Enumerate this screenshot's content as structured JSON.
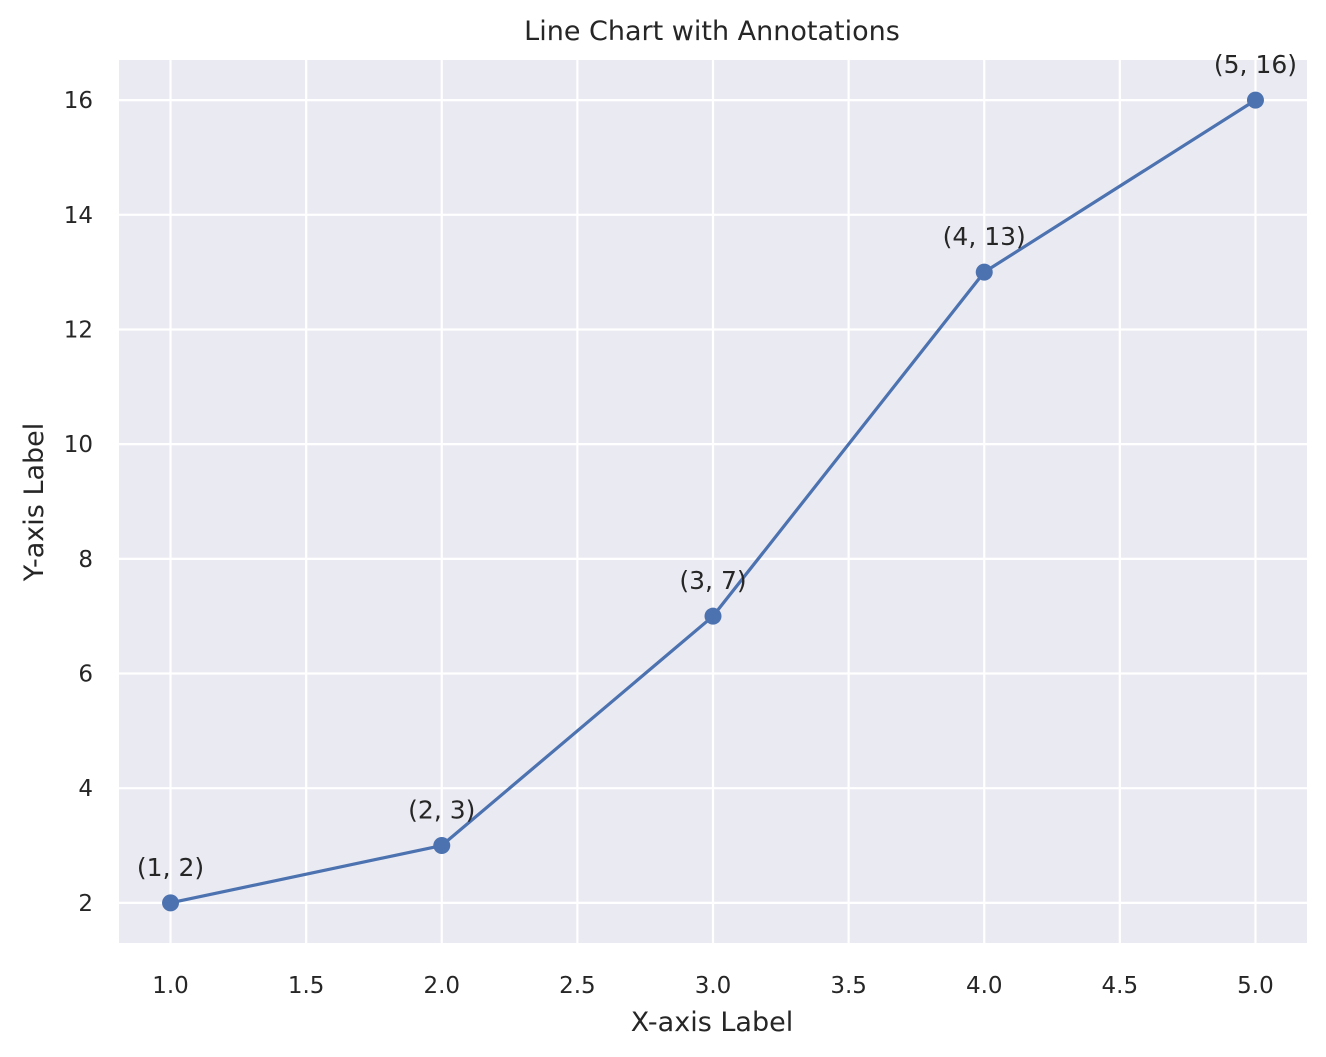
{
  "chart_data": {
    "type": "line",
    "title": "Line Chart with Annotations",
    "xlabel": "X-axis Label",
    "ylabel": "Y-axis Label",
    "x": [
      1,
      2,
      3,
      4,
      5
    ],
    "series": [
      {
        "values": [
          2,
          3,
          7,
          13,
          16
        ],
        "color": "#4c72b0",
        "marker": "circle"
      }
    ],
    "annotations": [
      "(1, 2)",
      "(2, 3)",
      "(3, 7)",
      "(4, 13)",
      "(5, 16)"
    ],
    "xlim": [
      0.81,
      5.19
    ],
    "ylim": [
      1.3,
      16.7
    ],
    "xticks": [
      1.0,
      1.5,
      2.0,
      2.5,
      3.0,
      3.5,
      4.0,
      4.5,
      5.0
    ],
    "xtick_labels": [
      "1.0",
      "1.5",
      "2.0",
      "2.5",
      "3.0",
      "3.5",
      "4.0",
      "4.5",
      "5.0"
    ],
    "yticks": [
      2,
      4,
      6,
      8,
      10,
      12,
      14,
      16
    ],
    "ytick_labels": [
      "2",
      "4",
      "6",
      "8",
      "10",
      "12",
      "14",
      "16"
    ],
    "grid": true,
    "colors": {
      "plot_background": "#eaeaf2",
      "grid": "#ffffff",
      "text": "#262626"
    }
  }
}
